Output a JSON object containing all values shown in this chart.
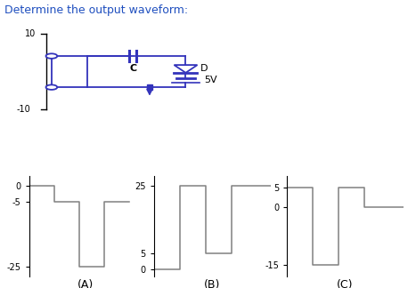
{
  "title": "Determine the output waveform:",
  "title_color": "#1F4FBF",
  "title_fontsize": 9,
  "bg_color": "#ffffff",
  "line_color": "#808080",
  "circuit_color": "#3333BB",
  "waveform_A": {
    "label": "(A)",
    "yticks": [
      -25,
      -5,
      0
    ],
    "ytick_labels": [
      "-25",
      "-5",
      "0"
    ],
    "x": [
      0,
      1,
      1,
      2,
      2,
      3,
      3,
      4
    ],
    "y": [
      0,
      0,
      -5,
      -5,
      -25,
      -25,
      -5,
      -5
    ],
    "ylim": [
      -28,
      3
    ],
    "xlim": [
      0,
      4.5
    ]
  },
  "waveform_B": {
    "label": "(B)",
    "yticks": [
      0,
      5,
      25
    ],
    "ytick_labels": [
      "0",
      "5",
      "25"
    ],
    "x": [
      0,
      1,
      1,
      2,
      2,
      3,
      3,
      4.5
    ],
    "y": [
      0,
      0,
      25,
      25,
      5,
      5,
      25,
      25
    ],
    "ylim": [
      -2,
      28
    ],
    "xlim": [
      0,
      4.5
    ]
  },
  "waveform_C": {
    "label": "(C)",
    "yticks": [
      -15,
      0,
      5
    ],
    "ytick_labels": [
      "-15",
      "0",
      "5"
    ],
    "x": [
      0,
      1,
      1,
      2,
      2,
      3,
      3,
      4.5
    ],
    "y": [
      5,
      5,
      -15,
      -15,
      5,
      5,
      0,
      0
    ],
    "ylim": [
      -18,
      8
    ],
    "xlim": [
      0,
      4.5
    ]
  }
}
